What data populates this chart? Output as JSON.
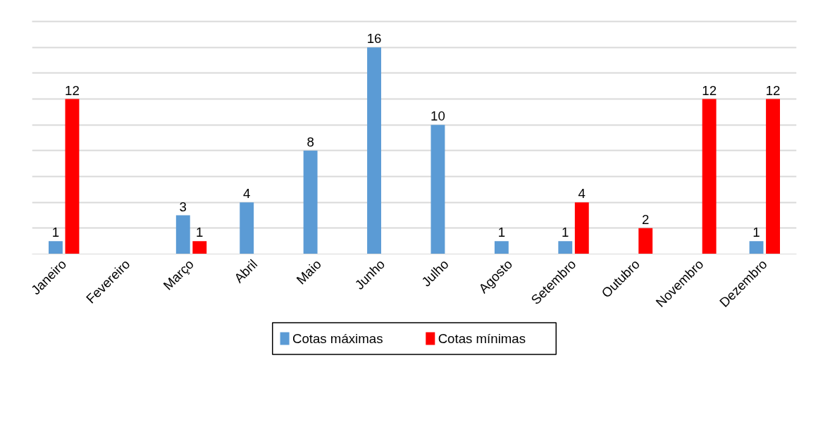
{
  "chart_data": {
    "type": "bar",
    "categories": [
      "Janeiro",
      "Fevereiro",
      "Março",
      "Abril",
      "Maio",
      "Junho",
      "Julho",
      "Agosto",
      "Setembro",
      "Outubro",
      "Novembro",
      "Dezembro"
    ],
    "series": [
      {
        "name": "Cotas máximas",
        "color": "#5b9bd5",
        "values": [
          1,
          null,
          3,
          4,
          8,
          16,
          10,
          1,
          1,
          null,
          null,
          1
        ]
      },
      {
        "name": "Cotas mínimas",
        "color": "#ff0000",
        "values": [
          12,
          null,
          1,
          null,
          null,
          null,
          null,
          null,
          4,
          2,
          12,
          12
        ]
      }
    ],
    "ylim": [
      0,
      18
    ],
    "yticks": [
      {
        "value": 0,
        "label": null
      },
      {
        "value": 2,
        "label": null
      },
      {
        "value": 4,
        "label": null
      },
      {
        "value": 6,
        "label": null
      },
      {
        "value": 8,
        "label": null
      },
      {
        "value": 10,
        "label": null
      },
      {
        "value": 12,
        "label": null
      },
      {
        "value": 14,
        "label": null
      },
      {
        "value": 16,
        "label": null
      },
      {
        "value": 18,
        "label": null
      }
    ],
    "tick_labels": "x",
    "grid": "y",
    "data_labels": true,
    "legend": "bottom"
  }
}
